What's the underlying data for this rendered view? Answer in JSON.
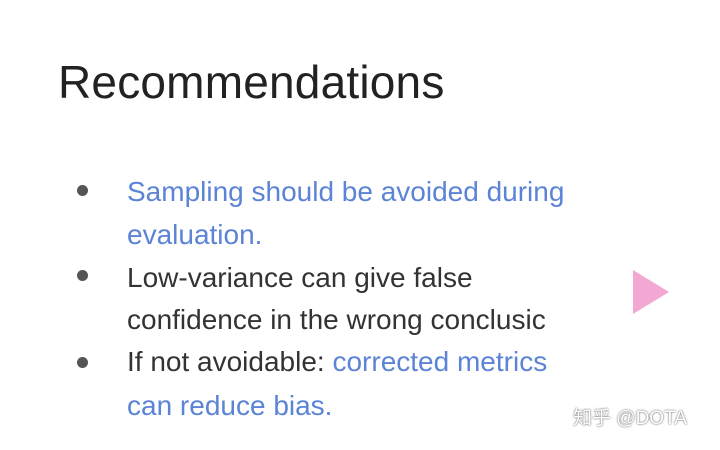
{
  "slide": {
    "title": "Recommendations",
    "bullets": [
      {
        "lines": [
          [
            {
              "text": "Sampling should be avoided during",
              "color": "blue"
            }
          ],
          [
            {
              "text": "evaluation.",
              "color": "blue"
            }
          ]
        ]
      },
      {
        "lines": [
          [
            {
              "text": "Low-variance can give false",
              "color": "dark"
            }
          ],
          [
            {
              "text": "confidence in the wrong conclusic",
              "color": "dark"
            }
          ]
        ]
      },
      {
        "lines": [
          [
            {
              "text": "If not avoidable: ",
              "color": "dark"
            },
            {
              "text": "corrected metrics",
              "color": "blue"
            }
          ],
          [
            {
              "text": "can reduce bias.",
              "color": "blue"
            }
          ]
        ]
      }
    ]
  },
  "colors": {
    "accent_blue": "#5b83d6",
    "text_dark": "#333333",
    "title": "#222222",
    "play_arrow": "#f3a7d3"
  },
  "overlay": {
    "play_icon": "play-arrow-icon",
    "watermark": "知乎 @DOTA"
  }
}
